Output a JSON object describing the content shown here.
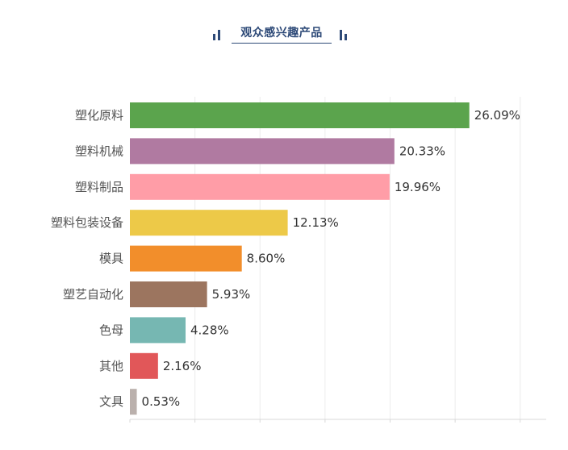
{
  "chart_data": {
    "type": "bar",
    "orientation": "horizontal",
    "title": "观众感兴趣产品",
    "xlabel": "",
    "ylabel": "",
    "xlim": [
      0,
      32
    ],
    "grid": "vertical",
    "categories": [
      "塑化原料",
      "塑料机械",
      "塑料制品",
      "塑料包装设备",
      "模具",
      "塑艺自动化",
      "色母",
      "其他",
      "文具"
    ],
    "values": [
      26.09,
      20.33,
      19.96,
      12.13,
      8.6,
      5.93,
      4.28,
      2.16,
      0.53
    ],
    "value_labels": [
      "26.09%",
      "20.33%",
      "19.96%",
      "12.13%",
      "8.60%",
      "5.93%",
      "4.28%",
      "2.16%",
      "0.53%"
    ],
    "colors": [
      "#5ba44d",
      "#b07aa1",
      "#ff9da7",
      "#edc948",
      "#f28e2b",
      "#9c755f",
      "#76b7b2",
      "#e15759",
      "#bab0ac"
    ]
  }
}
